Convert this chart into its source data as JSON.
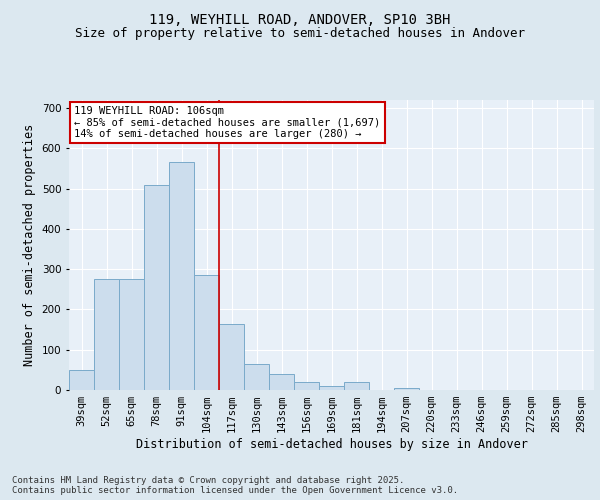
{
  "title_line1": "119, WEYHILL ROAD, ANDOVER, SP10 3BH",
  "title_line2": "Size of property relative to semi-detached houses in Andover",
  "xlabel": "Distribution of semi-detached houses by size in Andover",
  "ylabel": "Number of semi-detached properties",
  "categories": [
    "39sqm",
    "52sqm",
    "65sqm",
    "78sqm",
    "91sqm",
    "104sqm",
    "117sqm",
    "130sqm",
    "143sqm",
    "156sqm",
    "169sqm",
    "181sqm",
    "194sqm",
    "207sqm",
    "220sqm",
    "233sqm",
    "246sqm",
    "259sqm",
    "272sqm",
    "285sqm",
    "298sqm"
  ],
  "values": [
    50,
    275,
    275,
    510,
    565,
    285,
    165,
    65,
    40,
    20,
    10,
    20,
    0,
    5,
    0,
    0,
    0,
    0,
    0,
    0,
    0
  ],
  "bar_color": "#ccdded",
  "bar_edge_color": "#7aaaca",
  "vline_x_index": 5.5,
  "vline_color": "#cc0000",
  "annotation_line1": "119 WEYHILL ROAD: 106sqm",
  "annotation_line2": "← 85% of semi-detached houses are smaller (1,697)",
  "annotation_line3": "14% of semi-detached houses are larger (280) →",
  "annotation_box_color": "#ffffff",
  "annotation_box_edge": "#cc0000",
  "ylim": [
    0,
    720
  ],
  "yticks": [
    0,
    100,
    200,
    300,
    400,
    500,
    600,
    700
  ],
  "background_color": "#dce8f0",
  "plot_bg_color": "#e8f0f8",
  "footer_text": "Contains HM Land Registry data © Crown copyright and database right 2025.\nContains public sector information licensed under the Open Government Licence v3.0.",
  "title_fontsize": 10,
  "subtitle_fontsize": 9,
  "tick_fontsize": 7.5,
  "label_fontsize": 8.5,
  "footer_fontsize": 6.5
}
